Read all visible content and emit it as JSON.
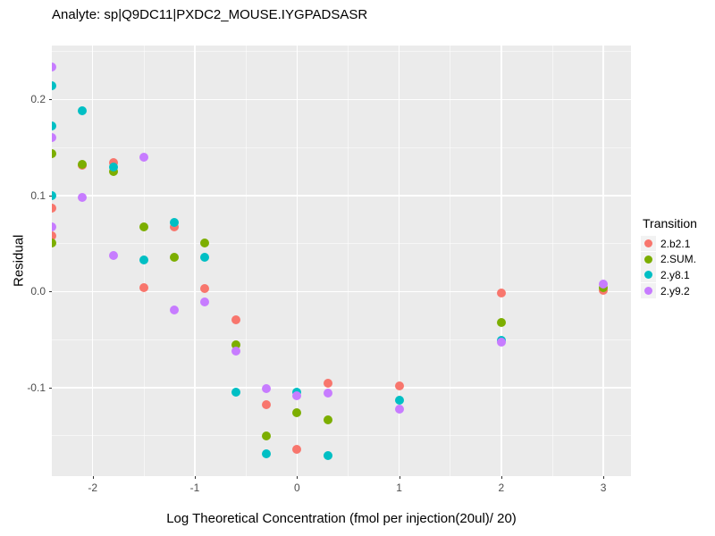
{
  "title": "Analyte: sp|Q9DC11|PXDC2_MOUSE.IYGPADSASR",
  "axes": {
    "x_label": "Log Theoretical Concentration (fmol per injection(20ul)/ 20)",
    "y_label": "Residual"
  },
  "legend": {
    "title": "Transition",
    "items": [
      {
        "label": "2.b2.1",
        "color": "#F8766D"
      },
      {
        "label": "2.SUM.",
        "color": "#7CAE00"
      },
      {
        "label": "2.y8.1",
        "color": "#00BFC4"
      },
      {
        "label": "2.y9.2",
        "color": "#C77CFF"
      }
    ]
  },
  "colors": {
    "background": "#FFFFFF",
    "panel_background": "#EBEBEB",
    "gridline": "#FFFFFF",
    "tick_mark": "#333333",
    "tick_label": "#4D4D4D",
    "text": "#000000"
  },
  "chart_data": {
    "type": "scatter",
    "title": "Analyte: sp|Q9DC11|PXDC2_MOUSE.IYGPADSASR",
    "xlabel": "Log Theoretical Concentration (fmol per injection(20ul)/ 20)",
    "ylabel": "Residual",
    "legend_title": "Transition",
    "legend_position": "right",
    "grid": true,
    "x_range": [
      -2.4,
      3.27
    ],
    "y_range": [
      -0.192,
      0.256
    ],
    "x_ticks": {
      "values": [
        -2,
        -1,
        0,
        1,
        2,
        3
      ],
      "labels": [
        "-2",
        "-1",
        "0",
        "1",
        "2",
        "3"
      ]
    },
    "y_ticks": {
      "values": [
        0.2,
        0.1,
        0.0,
        -0.1
      ],
      "labels": [
        "0.2",
        "0.1",
        "0.0",
        "-0.1"
      ]
    },
    "x_minor_gridlines": [
      -1.5,
      -0.5,
      0.5,
      1.5,
      2.5
    ],
    "y_minor_gridlines": [
      0.25,
      0.15,
      0.05,
      -0.05,
      -0.15
    ],
    "note": "points at x = -2.4 are half-clipped at the left panel edge",
    "series": [
      {
        "name": "2.b2.1",
        "color": "#F8766D",
        "points": [
          [
            -2.4,
            0.087
          ],
          [
            -2.4,
            0.058
          ],
          [
            -2.1,
            0.131
          ],
          [
            -1.8,
            0.134
          ],
          [
            -1.5,
            0.004
          ],
          [
            -1.2,
            0.067
          ],
          [
            -0.9,
            0.003
          ],
          [
            -0.6,
            -0.029
          ],
          [
            -0.3,
            -0.118
          ],
          [
            0.0,
            -0.164
          ],
          [
            0.3,
            -0.095
          ],
          [
            1.0,
            -0.098
          ],
          [
            2.0,
            -0.001
          ],
          [
            3.0,
            0.001
          ]
        ]
      },
      {
        "name": "2.SUM.",
        "color": "#7CAE00",
        "points": [
          [
            -2.4,
            0.144
          ],
          [
            -2.4,
            0.051
          ],
          [
            -2.1,
            0.132
          ],
          [
            -1.8,
            0.125
          ],
          [
            -1.5,
            0.067
          ],
          [
            -1.2,
            0.036
          ],
          [
            -0.9,
            0.051
          ],
          [
            -0.6,
            -0.055
          ],
          [
            -0.3,
            -0.15
          ],
          [
            0.0,
            -0.126
          ],
          [
            0.3,
            -0.133
          ],
          [
            2.0,
            -0.032
          ],
          [
            3.0,
            0.004
          ]
        ]
      },
      {
        "name": "2.y8.1",
        "color": "#00BFC4",
        "points": [
          [
            -2.4,
            0.214
          ],
          [
            -2.4,
            0.172
          ],
          [
            -2.4,
            0.1
          ],
          [
            -2.1,
            0.188
          ],
          [
            -1.8,
            0.13
          ],
          [
            -1.5,
            0.033
          ],
          [
            -1.2,
            0.072
          ],
          [
            -0.9,
            0.036
          ],
          [
            -0.6,
            -0.105
          ],
          [
            -0.3,
            -0.169
          ],
          [
            0.0,
            -0.105
          ],
          [
            0.3,
            -0.171
          ],
          [
            1.0,
            -0.113
          ],
          [
            2.0,
            -0.051
          ]
        ]
      },
      {
        "name": "2.y9.2",
        "color": "#C77CFF",
        "points": [
          [
            -2.4,
            0.234
          ],
          [
            -2.4,
            0.16
          ],
          [
            -2.4,
            0.067
          ],
          [
            -2.1,
            0.098
          ],
          [
            -1.8,
            0.038
          ],
          [
            -1.5,
            0.14
          ],
          [
            -1.2,
            -0.019
          ],
          [
            -0.9,
            -0.011
          ],
          [
            -0.6,
            -0.062
          ],
          [
            -0.3,
            -0.101
          ],
          [
            0.0,
            -0.108
          ],
          [
            0.3,
            -0.106
          ],
          [
            1.0,
            -0.122
          ],
          [
            2.0,
            -0.053
          ],
          [
            3.0,
            0.008
          ]
        ]
      }
    ]
  }
}
